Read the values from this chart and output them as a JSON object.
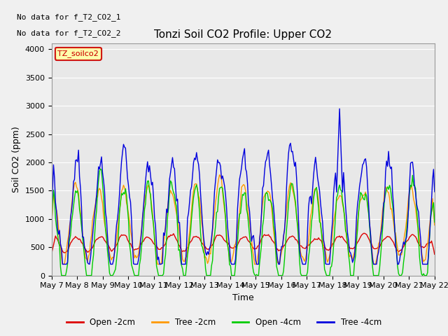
{
  "title": "Tonzi Soil CO2 Profile: Upper CO2",
  "ylabel": "Soil CO2 (ppm)",
  "xlabel": "Time",
  "ylim": [
    0,
    4100
  ],
  "yticks": [
    0,
    500,
    1000,
    1500,
    2000,
    2500,
    3000,
    3500,
    4000
  ],
  "fig_facecolor": "#f0f0f0",
  "plot_bg_color": "#e8e8e8",
  "no_data_text": [
    "No data for f_T2_CO2_1",
    "No data for f_T2_CO2_2"
  ],
  "legend_box_label": "TZ_soilco2",
  "legend_box_color": "#ffffaa",
  "legend_box_border": "#cc0000",
  "series_labels": [
    "Open -2cm",
    "Tree -2cm",
    "Open -4cm",
    "Tree -4cm"
  ],
  "series_colors": [
    "#dd0000",
    "#ff9900",
    "#00cc00",
    "#0000dd"
  ],
  "line_width": 1.0,
  "x_tick_labels": [
    "May 7",
    "May 8",
    "May 9",
    "May 10",
    "May 11",
    "May 12",
    "May 13",
    "May 14",
    "May 15",
    "May 16",
    "May 17",
    "May 18",
    "May 19",
    "May 20",
    "May 21",
    "May 22"
  ],
  "title_fontsize": 11,
  "axis_fontsize": 9,
  "tick_fontsize": 8
}
